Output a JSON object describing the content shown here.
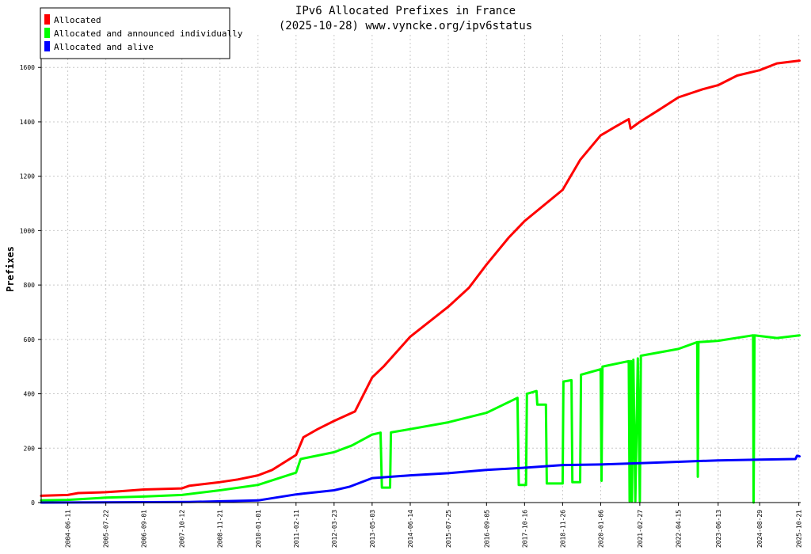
{
  "chart_data": {
    "type": "line",
    "title": "IPv6 Allocated Prefixes in France",
    "subtitle": "(2025-10-28) www.vyncke.org/ipv6status",
    "xlabel": "",
    "ylabel": "Prefixes",
    "xlim": [
      "2003-09-01",
      "2025-11-10"
    ],
    "ylim": [
      0,
      1720
    ],
    "y_ticks": [
      0,
      200,
      400,
      600,
      800,
      1000,
      1200,
      1400,
      1600
    ],
    "x_ticks": [
      "2004-06-11",
      "2005-07-22",
      "2006-09-01",
      "2007-10-12",
      "2008-11-21",
      "2010-01-01",
      "2011-02-11",
      "2012-03-23",
      "2013-05-03",
      "2014-06-14",
      "2015-07-25",
      "2016-09-05",
      "2017-10-16",
      "2018-11-26",
      "2020-01-06",
      "2021-02-27",
      "2022-04-15",
      "2023-06-13",
      "2024-08-29",
      "2025-10-21"
    ],
    "grid": true,
    "legend_position": "top-left",
    "series": [
      {
        "name": "Allocated",
        "color": "#ff0000",
        "points": [
          [
            "2003-09-01",
            25
          ],
          [
            "2004-06-11",
            28
          ],
          [
            "2004-10-01",
            35
          ],
          [
            "2005-07-22",
            38
          ],
          [
            "2006-01-01",
            42
          ],
          [
            "2006-09-01",
            48
          ],
          [
            "2007-10-12",
            52
          ],
          [
            "2008-01-01",
            62
          ],
          [
            "2008-11-21",
            75
          ],
          [
            "2009-06-01",
            85
          ],
          [
            "2010-01-01",
            100
          ],
          [
            "2010-06-01",
            120
          ],
          [
            "2011-02-11",
            175
          ],
          [
            "2011-05-01",
            240
          ],
          [
            "2011-10-01",
            270
          ],
          [
            "2012-03-23",
            300
          ],
          [
            "2012-11-01",
            335
          ],
          [
            "2013-05-03",
            460
          ],
          [
            "2013-09-01",
            500
          ],
          [
            "2014-06-14",
            610
          ],
          [
            "2015-07-25",
            720
          ],
          [
            "2016-03-01",
            790
          ],
          [
            "2016-09-05",
            875
          ],
          [
            "2017-05-01",
            975
          ],
          [
            "2017-10-16",
            1035
          ],
          [
            "2018-11-26",
            1150
          ],
          [
            "2019-06-01",
            1260
          ],
          [
            "2020-01-06",
            1350
          ],
          [
            "2020-06-01",
            1380
          ],
          [
            "2020-11-01",
            1410
          ],
          [
            "2020-11-20",
            1375
          ],
          [
            "2021-02-27",
            1400
          ],
          [
            "2021-09-01",
            1440
          ],
          [
            "2022-04-15",
            1490
          ],
          [
            "2023-01-01",
            1520
          ],
          [
            "2023-06-13",
            1535
          ],
          [
            "2024-01-01",
            1570
          ],
          [
            "2024-08-29",
            1590
          ],
          [
            "2025-03-01",
            1615
          ],
          [
            "2025-10-28",
            1625
          ]
        ]
      },
      {
        "name": "Allocated and announced individually",
        "color": "#00ff00",
        "points": [
          [
            "2003-09-01",
            8
          ],
          [
            "2004-06-11",
            10
          ],
          [
            "2005-07-22",
            18
          ],
          [
            "2006-09-01",
            22
          ],
          [
            "2007-10-12",
            28
          ],
          [
            "2008-11-21",
            45
          ],
          [
            "2010-01-01",
            65
          ],
          [
            "2011-02-11",
            110
          ],
          [
            "2011-04-01",
            160
          ],
          [
            "2012-03-23",
            185
          ],
          [
            "2012-10-01",
            210
          ],
          [
            "2013-05-03",
            250
          ],
          [
            "2013-08-01",
            257
          ],
          [
            "2013-08-15",
            55
          ],
          [
            "2013-11-10",
            55
          ],
          [
            "2013-11-20",
            258
          ],
          [
            "2014-06-14",
            270
          ],
          [
            "2015-07-25",
            295
          ],
          [
            "2016-09-05",
            330
          ],
          [
            "2017-08-01",
            385
          ],
          [
            "2017-08-15",
            65
          ],
          [
            "2017-11-01",
            65
          ],
          [
            "2017-11-10",
            400
          ],
          [
            "2018-02-20",
            410
          ],
          [
            "2018-03-01",
            360
          ],
          [
            "2018-06-01",
            360
          ],
          [
            "2018-06-10",
            70
          ],
          [
            "2018-11-26",
            70
          ],
          [
            "2018-12-05",
            445
          ],
          [
            "2019-03-01",
            450
          ],
          [
            "2019-03-10",
            75
          ],
          [
            "2019-06-01",
            75
          ],
          [
            "2019-06-10",
            470
          ],
          [
            "2020-01-06",
            490
          ],
          [
            "2020-01-15",
            80
          ],
          [
            "2020-01-25",
            500
          ],
          [
            "2020-11-01",
            520
          ],
          [
            "2020-11-10",
            5
          ],
          [
            "2020-11-25",
            520
          ],
          [
            "2020-12-05",
            5
          ],
          [
            "2020-12-20",
            525
          ],
          [
            "2021-01-10",
            5
          ],
          [
            "2021-02-05",
            530
          ],
          [
            "2021-02-27",
            5
          ],
          [
            "2021-03-10",
            540
          ],
          [
            "2022-04-15",
            565
          ],
          [
            "2022-11-01",
            590
          ],
          [
            "2022-11-08",
            95
          ],
          [
            "2022-11-15",
            590
          ],
          [
            "2023-06-13",
            595
          ],
          [
            "2024-06-20",
            615
          ],
          [
            "2024-06-25",
            0
          ],
          [
            "2024-07-05",
            615
          ],
          [
            "2025-03-01",
            605
          ],
          [
            "2025-10-28",
            615
          ]
        ]
      },
      {
        "name": "Allocated and alive",
        "color": "#0000ff",
        "points": [
          [
            "2003-09-01",
            0
          ],
          [
            "2008-01-01",
            2
          ],
          [
            "2010-01-01",
            8
          ],
          [
            "2011-02-11",
            30
          ],
          [
            "2012-03-23",
            45
          ],
          [
            "2012-09-01",
            58
          ],
          [
            "2013-05-03",
            90
          ],
          [
            "2014-06-14",
            100
          ],
          [
            "2015-07-25",
            108
          ],
          [
            "2016-09-05",
            120
          ],
          [
            "2017-10-16",
            128
          ],
          [
            "2018-11-26",
            138
          ],
          [
            "2020-01-06",
            140
          ],
          [
            "2021-02-27",
            145
          ],
          [
            "2022-04-15",
            150
          ],
          [
            "2023-06-13",
            155
          ],
          [
            "2024-08-29",
            158
          ],
          [
            "2025-09-15",
            160
          ],
          [
            "2025-10-01",
            172
          ],
          [
            "2025-10-28",
            170
          ]
        ]
      }
    ]
  }
}
